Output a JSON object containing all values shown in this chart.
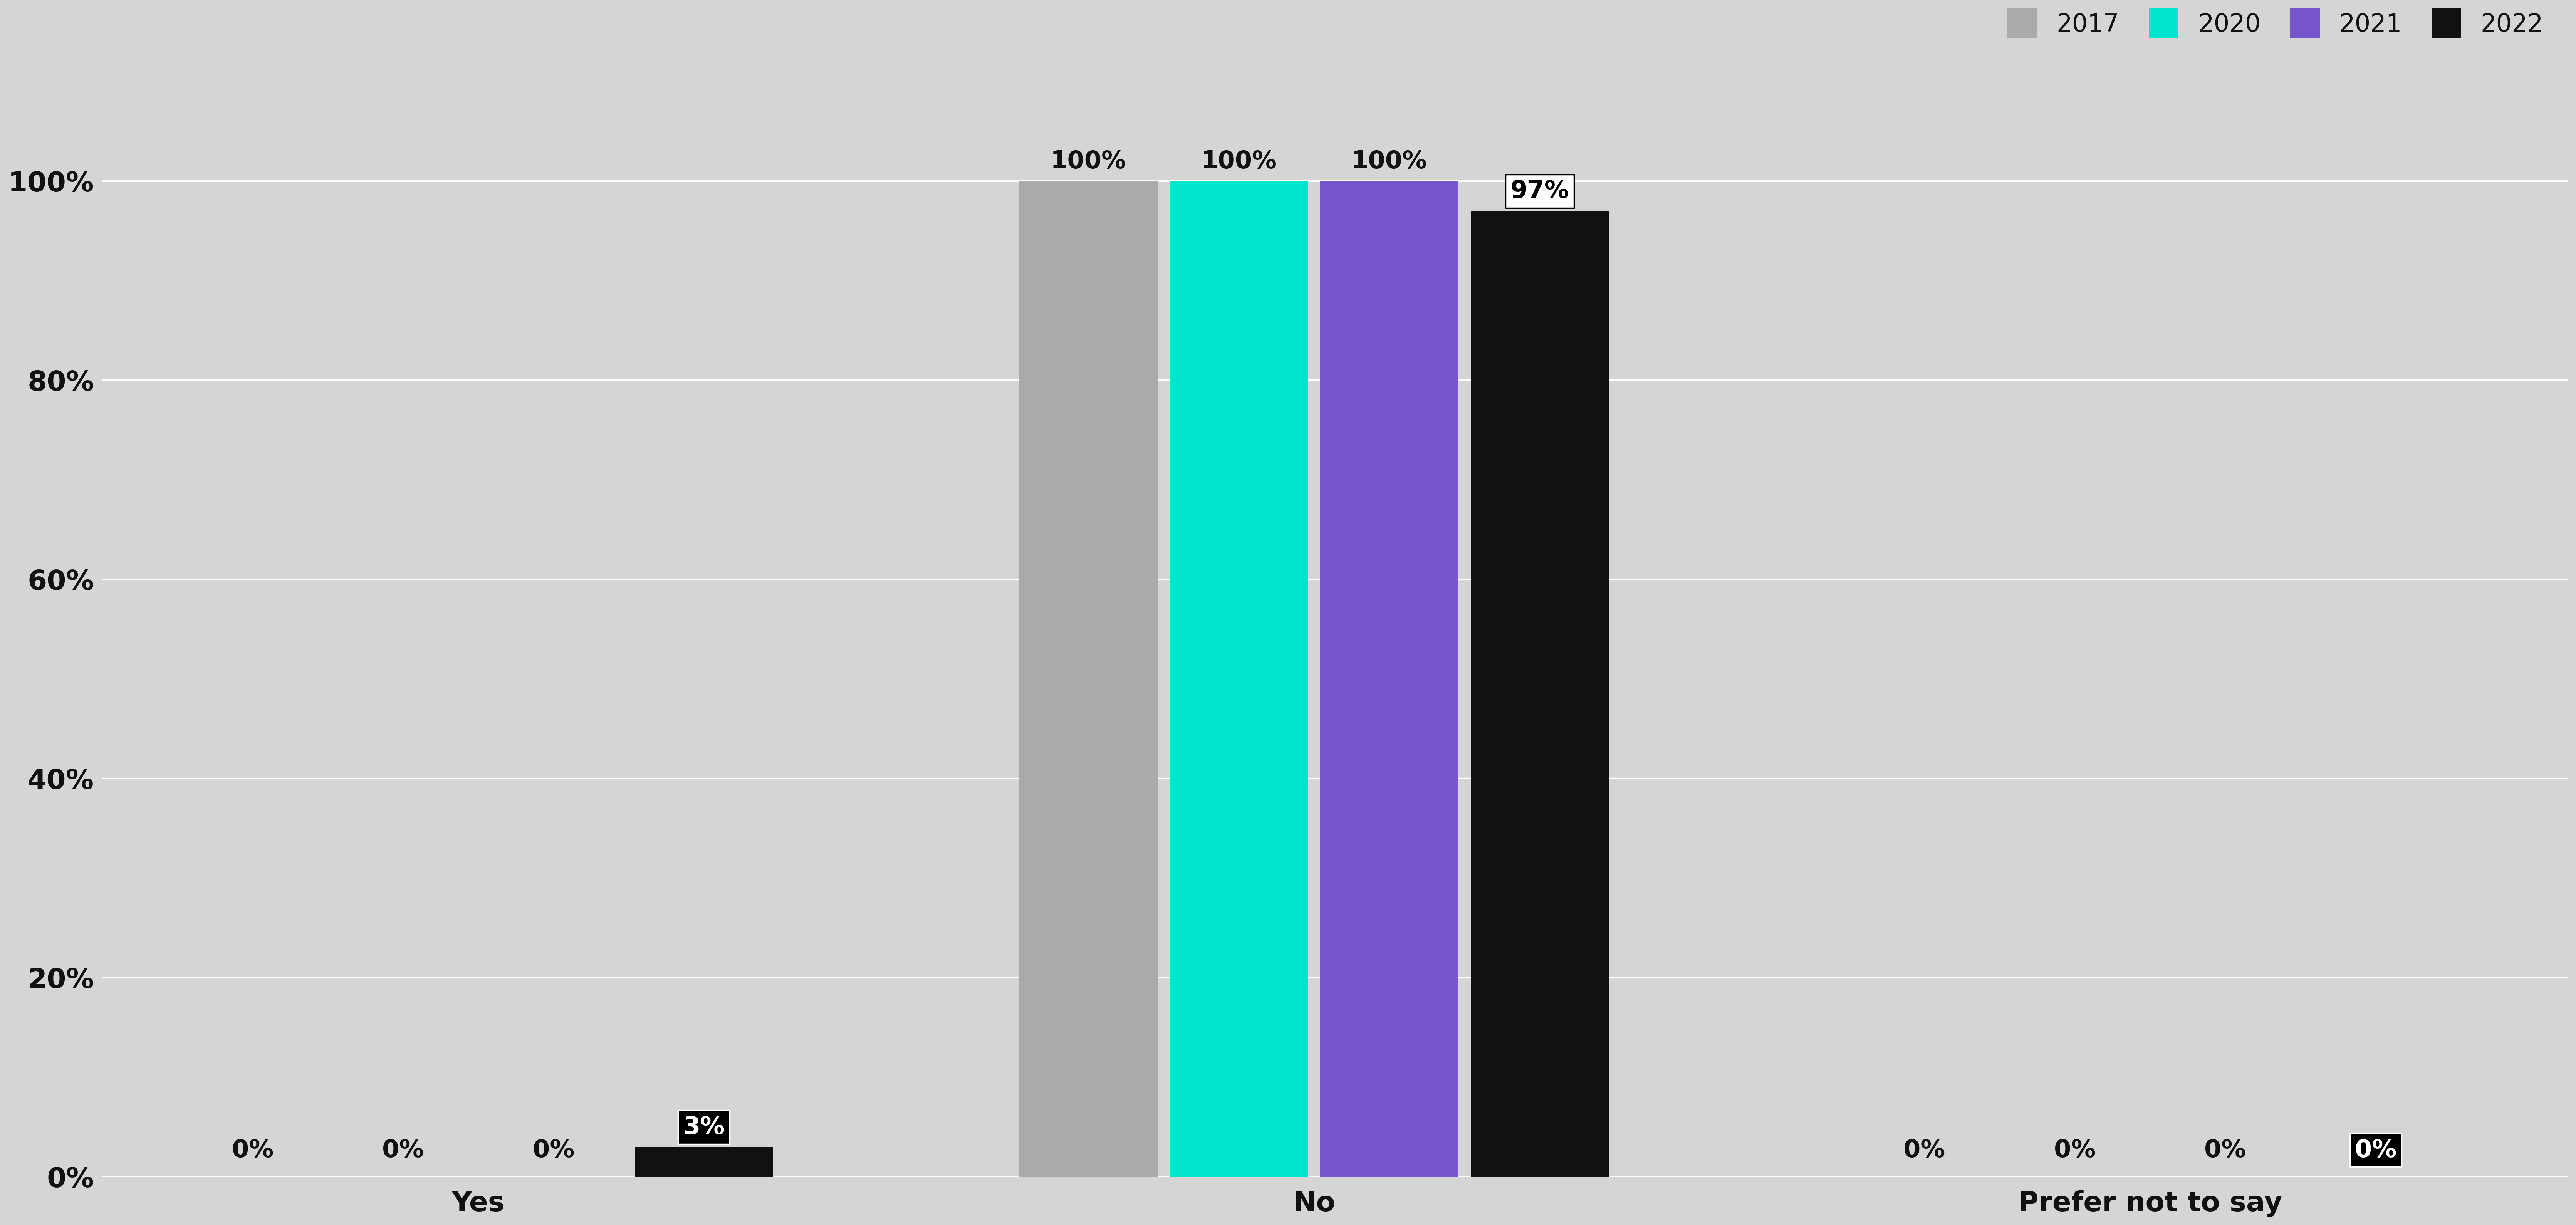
{
  "categories": [
    "Yes",
    "No",
    "Prefer not to say"
  ],
  "years": [
    "2017",
    "2020",
    "2021",
    "2022"
  ],
  "colors": [
    "#aaaaaa",
    "#00e5cc",
    "#7755cc",
    "#111111"
  ],
  "values": {
    "Yes": [
      0,
      0,
      0,
      3
    ],
    "No": [
      100,
      100,
      100,
      97
    ],
    "Prefer not to say": [
      0,
      0,
      0,
      0
    ]
  },
  "background_color": "#d5d5d5",
  "figure_background": "#d5d5d5",
  "bar_width": 0.18,
  "ylim": [
    0,
    112
  ],
  "yticks": [
    0,
    20,
    40,
    60,
    80,
    100
  ],
  "ytick_labels": [
    "0%",
    "20%",
    "40%",
    "60%",
    "80%",
    "100%"
  ],
  "tick_fontsize": 52,
  "annotation_fontsize": 46,
  "legend_fontsize": 46,
  "xcat_fontsize": 52,
  "text_color": "#111111",
  "grid_color": "#ffffff",
  "grid_linewidth": 3.0
}
